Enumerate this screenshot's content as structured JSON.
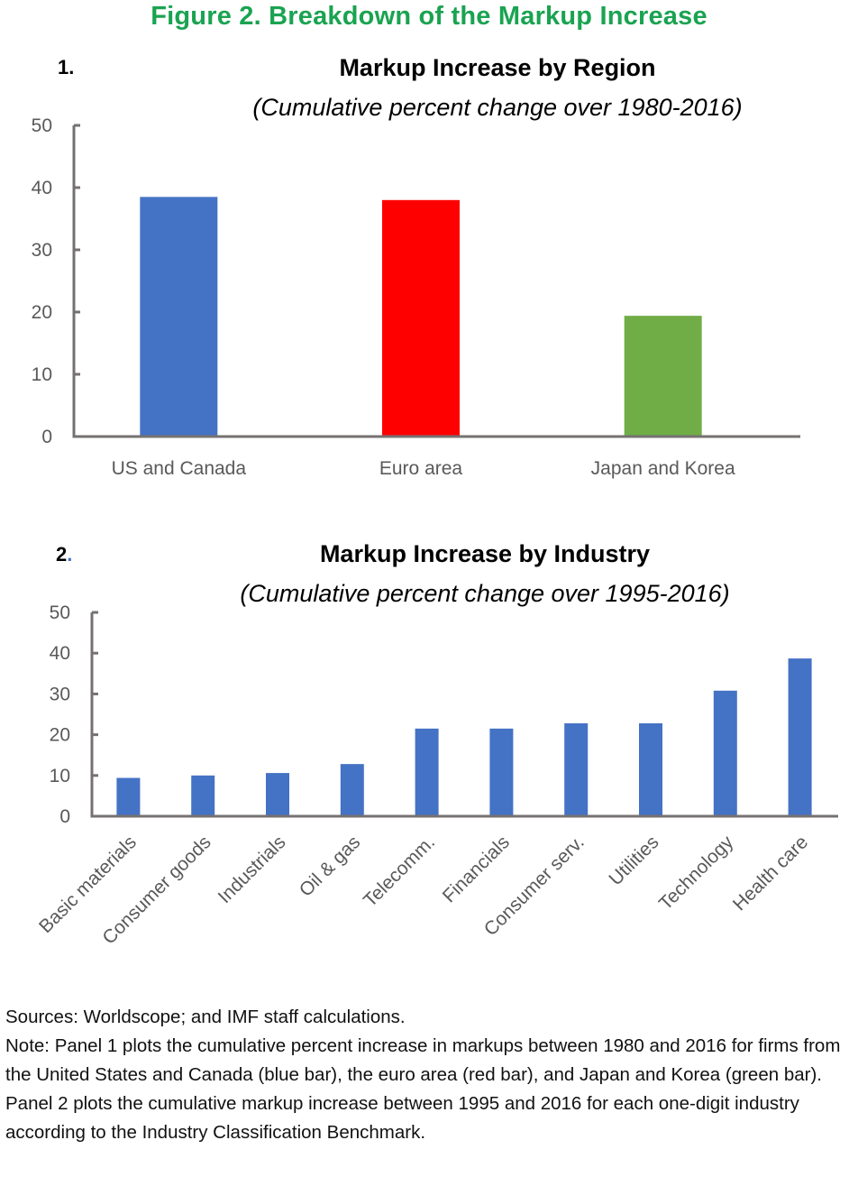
{
  "figure_title": "Figure 2. Breakdown of the Markup Increase",
  "panels": [
    {
      "number": "1.",
      "title": "Markup Increase by Region",
      "subtitle": "(Cumulative percent change over 1980-2016)"
    },
    {
      "number_digit": "2",
      "number_dot": ".",
      "title": "Markup Increase by Industry",
      "subtitle": "(Cumulative percent change over 1995-2016)"
    }
  ],
  "colors": {
    "title_green": "#1aa351",
    "blue": "#4472c4",
    "red": "#ff0000",
    "green": "#70ad47",
    "axis": "#767171"
  },
  "chart_data": [
    {
      "type": "bar",
      "title": "Markup Increase by Region",
      "subtitle": "(Cumulative percent change over 1980-2016)",
      "xlabel": "",
      "ylabel": "",
      "categories": [
        "US and Canada",
        "Euro area",
        "Japan and Korea"
      ],
      "values": [
        38.5,
        38.0,
        19.4
      ],
      "bar_colors": [
        "#4472c4",
        "#ff0000",
        "#70ad47"
      ],
      "ylim": [
        0,
        50
      ],
      "yticks": [
        0,
        10,
        20,
        30,
        40,
        50
      ],
      "grid": false,
      "legend": "none"
    },
    {
      "type": "bar",
      "title": "Markup Increase by Industry",
      "subtitle": "(Cumulative percent change over 1995-2016)",
      "xlabel": "",
      "ylabel": "",
      "categories": [
        "Basic materials",
        "Consumer goods",
        "Industrials",
        "Oil & gas",
        "Telecomm.",
        "Financials",
        "Consumer serv.",
        "Utilities",
        "Technology",
        "Health care"
      ],
      "values": [
        9.4,
        10.0,
        10.6,
        12.8,
        21.5,
        21.5,
        22.8,
        22.8,
        30.8,
        38.7
      ],
      "bar_colors": [
        "#4472c4"
      ],
      "ylim": [
        0,
        50
      ],
      "yticks": [
        0,
        10,
        20,
        30,
        40,
        50
      ],
      "grid": false,
      "legend": "none"
    }
  ],
  "notes": {
    "sources": "Sources: Worldscope; and IMF staff calculations.",
    "note": "Note: Panel 1 plots the cumulative percent increase in markups between 1980 and 2016 for firms from the United States and Canada (blue bar), the euro area (red bar), and Japan and Korea (green bar). Panel 2 plots the cumulative markup increase between 1995 and 2016 for each one-digit industry according to the Industry Classification Benchmark."
  }
}
